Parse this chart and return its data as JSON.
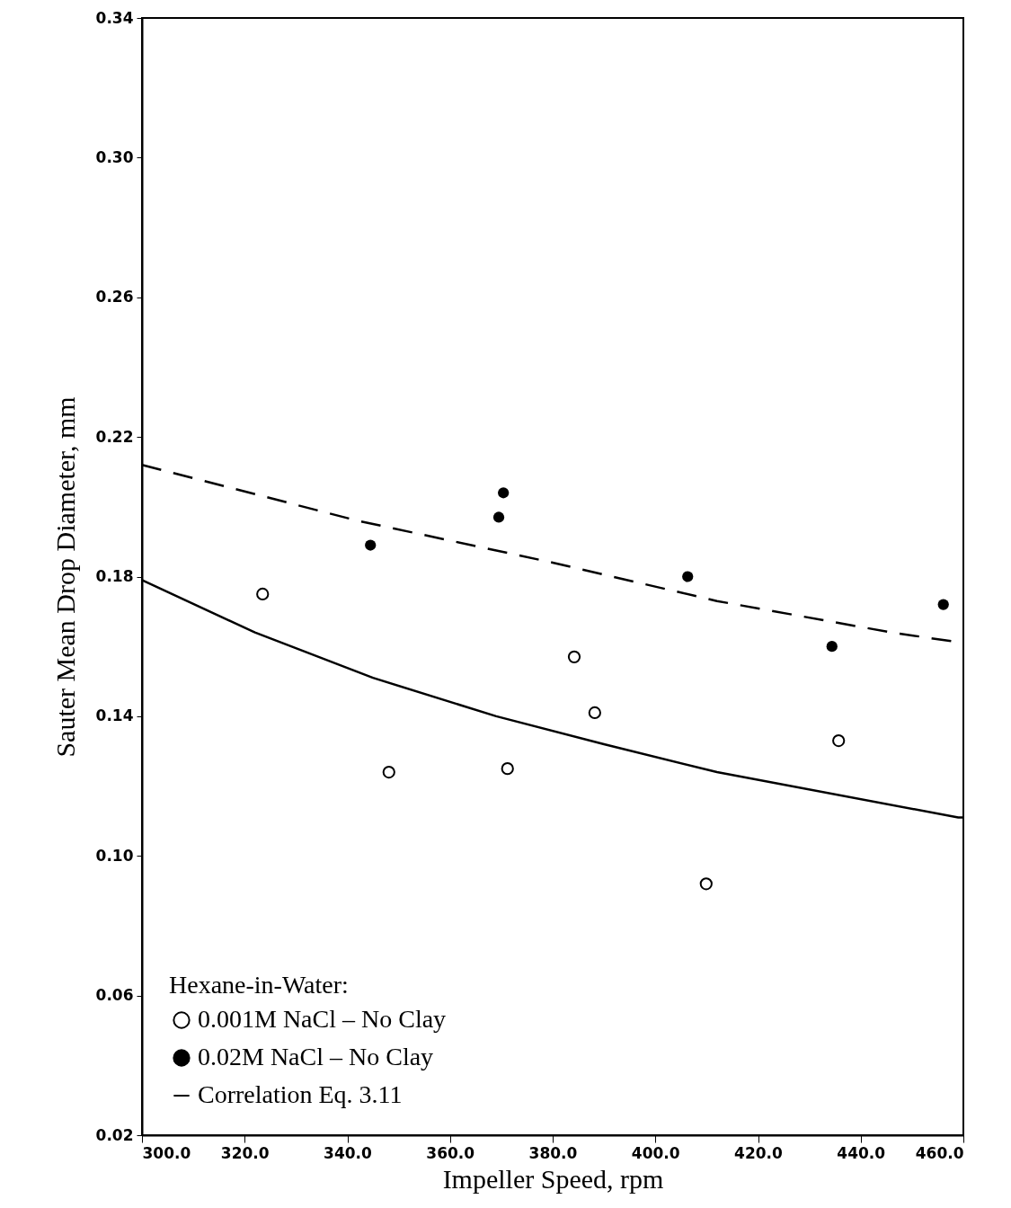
{
  "chart_data": {
    "type": "scatter",
    "xlabel": "Impeller Speed, rpm",
    "ylabel": "Sauter Mean Drop Diameter, mm",
    "legend_title": "Hexane-in-Water:",
    "series": [
      {
        "name": "0.001M NaCl – No Clay",
        "type": "scatter",
        "marker": "circle",
        "color": "#000000",
        "x": [
          323.5,
          348.1,
          371.2,
          384.2,
          388.2,
          409.9,
          435.7
        ],
        "values": [
          0.175,
          0.124,
          0.125,
          0.157,
          0.141,
          0.092,
          0.133
        ]
      },
      {
        "name": "0.02M NaCl – No Clay",
        "type": "scatter",
        "marker": "circle",
        "color": "#000000",
        "x": [
          344.5,
          369.5,
          370.4,
          406.3,
          434.4,
          456.1
        ],
        "values": [
          0.189,
          0.197,
          0.204,
          0.18,
          0.16,
          0.172
        ]
      },
      {
        "type": "line",
        "line_style": "dashed",
        "color": "#000000",
        "x": [
          300,
          342,
          380,
          412,
          446,
          460
        ],
        "values": [
          0.212,
          0.196,
          0.184,
          0.173,
          0.164,
          0.161
        ]
      },
      {
        "name": "Correlation Eq. 3.11",
        "type": "line",
        "line_style": "solid",
        "color": "#000000",
        "x": [
          300,
          322,
          345,
          369,
          390,
          412,
          459,
          460
        ],
        "values": [
          0.179,
          0.164,
          0.151,
          0.14,
          0.132,
          0.124,
          0.111,
          0.111
        ]
      }
    ],
    "xlim": [
      300,
      460
    ],
    "ylim": [
      0.02,
      0.34
    ],
    "xticks": [
      {
        "value": 300,
        "label": "300.0"
      },
      {
        "value": 320,
        "label": "320.0"
      },
      {
        "value": 340,
        "label": "340.0"
      },
      {
        "value": 360,
        "label": "360.0"
      },
      {
        "value": 380,
        "label": "380.0"
      },
      {
        "value": 400,
        "label": "400.0"
      },
      {
        "value": 420,
        "label": "420.0"
      },
      {
        "value": 440,
        "label": "440.0"
      },
      {
        "value": 460,
        "label": "460.0"
      }
    ],
    "yticks": [
      {
        "value": 0.02,
        "label": "0.02"
      },
      {
        "value": 0.06,
        "label": "0.06"
      },
      {
        "value": 0.1,
        "label": "0.10"
      },
      {
        "value": 0.14,
        "label": "0.14"
      },
      {
        "value": 0.18,
        "label": "0.18"
      },
      {
        "value": 0.22,
        "label": "0.22"
      },
      {
        "value": 0.26,
        "label": "0.26"
      },
      {
        "value": 0.3,
        "label": "0.30"
      },
      {
        "value": 0.34,
        "label": "0.34"
      }
    ],
    "grid": false,
    "legend": "bottom left"
  }
}
